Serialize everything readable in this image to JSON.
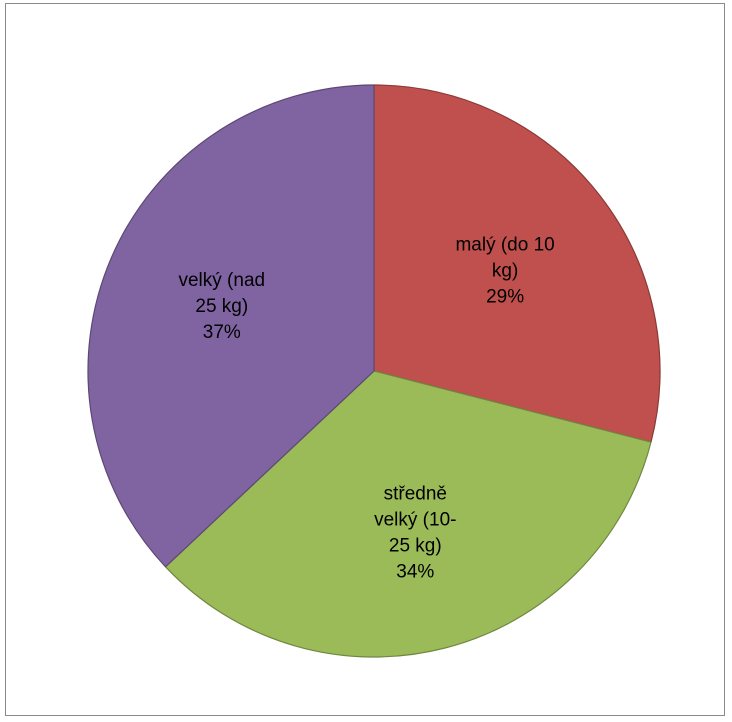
{
  "chart_data": {
    "type": "pie",
    "title": "",
    "slices": [
      {
        "label": "malý (do 10 kg)",
        "label_lines": [
          "malý (do 10",
          "kg)"
        ],
        "value": 29,
        "percent_label": "29%",
        "color": "#C0504D"
      },
      {
        "label": "středně velký (10-25 kg)",
        "label_lines": [
          "středně",
          "velký (10-",
          "25 kg)"
        ],
        "value": 34,
        "percent_label": "34%",
        "color": "#9BBB59"
      },
      {
        "label": "velký (nad 25 kg)",
        "label_lines": [
          "velký (nad",
          "25 kg)"
        ],
        "value": 37,
        "percent_label": "37%",
        "color": "#8064A2"
      }
    ],
    "start_angle": "12 o'clock",
    "direction": "clockwise",
    "legend": "none"
  }
}
